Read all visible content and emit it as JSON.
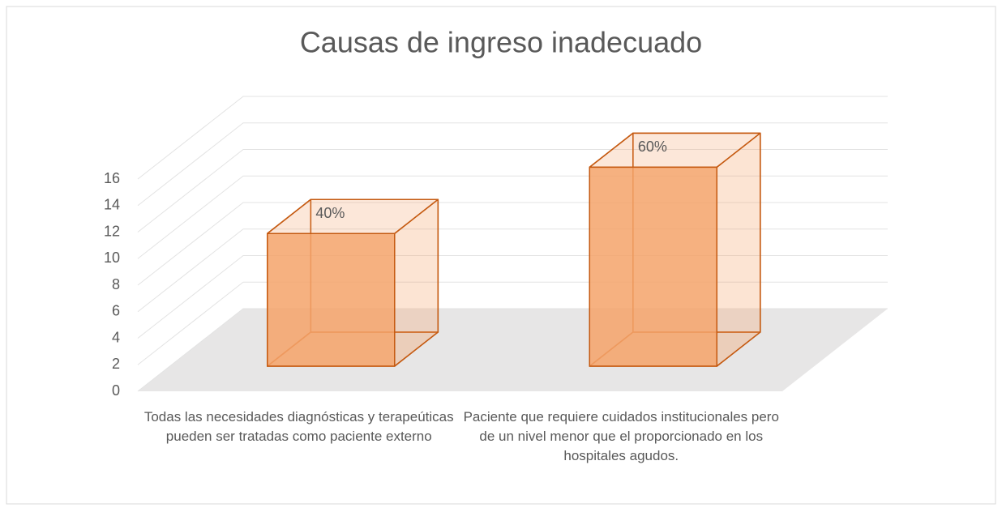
{
  "chart_data": {
    "type": "bar3d",
    "title": "Causas de ingreso inadecuado",
    "categories": [
      "Todas las necesidades diagnósticas y terapeúticas pueden ser tratadas como paciente externo",
      "Paciente que requiere cuidados institucionales pero de un nivel menor que el proporcionado en los hospitales agudos."
    ],
    "values": [
      10,
      15
    ],
    "value_labels": [
      "40%",
      "60%"
    ],
    "color": "#f4a46c",
    "ylim": [
      0,
      16
    ],
    "yticks": [
      0,
      2,
      4,
      6,
      8,
      10,
      12,
      14,
      16
    ],
    "grid": true
  }
}
